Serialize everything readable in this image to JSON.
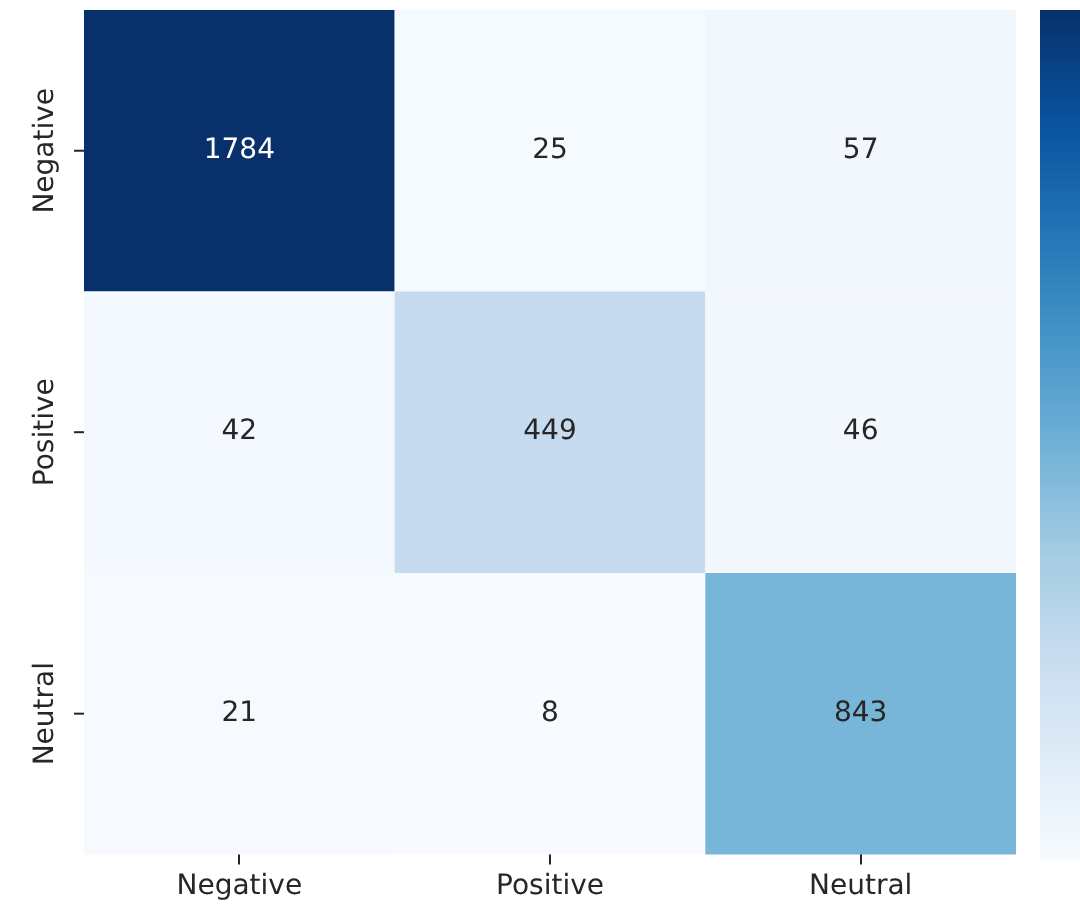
{
  "chart_data": {
    "type": "heatmap",
    "categories": [
      "Negative",
      "Positive",
      "Neutral"
    ],
    "y_categories": [
      "Negative",
      "Positive",
      "Neutral"
    ],
    "cells": [
      [
        1784,
        25,
        57
      ],
      [
        42,
        449,
        46
      ],
      [
        21,
        8,
        843
      ]
    ],
    "data_labels": true
  }
}
